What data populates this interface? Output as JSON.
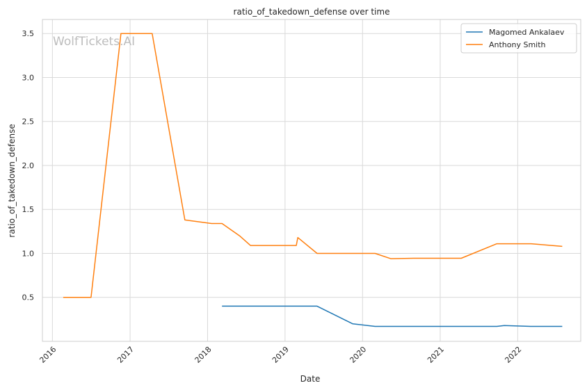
{
  "chart_data": {
    "type": "line",
    "title": "ratio_of_takedown_defense over time",
    "xlabel": "Date",
    "ylabel": "ratio_of_takedown_defense",
    "watermark": "WolfTickets.AI",
    "x_type": "date",
    "xlim": [
      "2015-11-15",
      "2022-10-25"
    ],
    "ylim": [
      0.0,
      3.66
    ],
    "x_ticks": [
      {
        "date": "2016-01-01",
        "label": "2016"
      },
      {
        "date": "2017-01-01",
        "label": "2017"
      },
      {
        "date": "2018-01-01",
        "label": "2018"
      },
      {
        "date": "2019-01-01",
        "label": "2019"
      },
      {
        "date": "2020-01-01",
        "label": "2020"
      },
      {
        "date": "2021-01-01",
        "label": "2021"
      },
      {
        "date": "2022-01-01",
        "label": "2022"
      }
    ],
    "y_ticks": [
      {
        "value": 0.5,
        "label": "0.5"
      },
      {
        "value": 1.0,
        "label": "1.0"
      },
      {
        "value": 1.5,
        "label": "1.5"
      },
      {
        "value": 2.0,
        "label": "2.0"
      },
      {
        "value": 2.5,
        "label": "2.5"
      },
      {
        "value": 3.0,
        "label": "3.0"
      },
      {
        "value": 3.5,
        "label": "3.5"
      }
    ],
    "grid": true,
    "legend_position": "top-right",
    "series": [
      {
        "name": "Magomed Ankalaev",
        "color": "#1f77b4",
        "points": [
          {
            "x": "2018-03-10",
            "y": 0.4
          },
          {
            "x": "2019-06-01",
            "y": 0.4
          },
          {
            "x": "2019-11-15",
            "y": 0.2
          },
          {
            "x": "2020-02-29",
            "y": 0.17
          },
          {
            "x": "2021-09-25",
            "y": 0.17
          },
          {
            "x": "2021-10-30",
            "y": 0.18
          },
          {
            "x": "2022-03-05",
            "y": 0.17
          },
          {
            "x": "2022-07-30",
            "y": 0.17
          }
        ]
      },
      {
        "name": "Anthony Smith",
        "color": "#ff7f0e",
        "points": [
          {
            "x": "2016-02-21",
            "y": 0.5
          },
          {
            "x": "2016-07-01",
            "y": 0.5
          },
          {
            "x": "2016-11-19",
            "y": 3.5
          },
          {
            "x": "2017-04-15",
            "y": 3.5
          },
          {
            "x": "2017-09-16",
            "y": 1.38
          },
          {
            "x": "2018-01-20",
            "y": 1.34
          },
          {
            "x": "2018-03-10",
            "y": 1.34
          },
          {
            "x": "2018-06-01",
            "y": 1.2
          },
          {
            "x": "2018-07-22",
            "y": 1.09
          },
          {
            "x": "2019-02-23",
            "y": 1.09
          },
          {
            "x": "2019-03-02",
            "y": 1.18
          },
          {
            "x": "2019-06-01",
            "y": 1.0
          },
          {
            "x": "2020-02-29",
            "y": 1.0
          },
          {
            "x": "2020-05-13",
            "y": 0.94
          },
          {
            "x": "2020-08-29",
            "y": 0.945
          },
          {
            "x": "2021-04-10",
            "y": 0.945
          },
          {
            "x": "2021-09-25",
            "y": 1.11
          },
          {
            "x": "2022-03-05",
            "y": 1.11
          },
          {
            "x": "2022-07-30",
            "y": 1.08
          }
        ]
      }
    ]
  }
}
